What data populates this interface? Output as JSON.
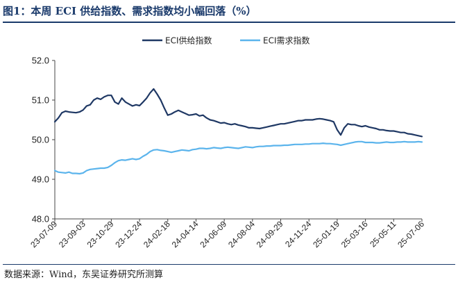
{
  "title": "图1：本周 ECI 供给指数、需求指数均小幅回落（%）",
  "source": "数据来源：Wind，东吴证券研究所测算",
  "colors": {
    "supply": "#1f3864",
    "demand": "#5bb4ec",
    "axis": "#444444",
    "heading": "#1a3a6b"
  },
  "chart_data": {
    "type": "line",
    "title": "本周 ECI 供给指数、需求指数均小幅回落（%）",
    "ylim": [
      48.0,
      52.0
    ],
    "yticks": [
      "48.0",
      "49.0",
      "50.0",
      "51.0",
      "52.0"
    ],
    "xlim": [
      "2023-07-09",
      "2025-07-06"
    ],
    "xticks": [
      "23-07-09",
      "23-09-03",
      "23-10-29",
      "23-12-24",
      "24-02-18",
      "24-04-14",
      "24-06-09",
      "24-08-04",
      "24-09-29",
      "24-11-24",
      "25-01-19",
      "25-03-16",
      "25-05-11",
      "25-07-06"
    ],
    "legend_position": "top-center",
    "grid": false,
    "series": [
      {
        "name": "ECI供给指数",
        "x": [
          "2023-07-09",
          "2023-07-16",
          "2023-07-23",
          "2023-07-30",
          "2023-08-06",
          "2023-08-13",
          "2023-08-20",
          "2023-08-27",
          "2023-09-03",
          "2023-09-10",
          "2023-09-17",
          "2023-09-24",
          "2023-10-01",
          "2023-10-08",
          "2023-10-15",
          "2023-10-22",
          "2023-10-29",
          "2023-11-05",
          "2023-11-12",
          "2023-11-19",
          "2023-11-26",
          "2023-12-03",
          "2023-12-10",
          "2023-12-17",
          "2023-12-24",
          "2023-12-31",
          "2024-01-07",
          "2024-01-14",
          "2024-01-21",
          "2024-01-28",
          "2024-02-04",
          "2024-02-11",
          "2024-02-18",
          "2024-02-25",
          "2024-03-03",
          "2024-03-10",
          "2024-03-17",
          "2024-03-24",
          "2024-03-31",
          "2024-04-07",
          "2024-04-14",
          "2024-04-21",
          "2024-04-28",
          "2024-05-05",
          "2024-05-12",
          "2024-05-19",
          "2024-05-26",
          "2024-06-02",
          "2024-06-09",
          "2024-06-16",
          "2024-06-23",
          "2024-06-30",
          "2024-07-07",
          "2024-07-14",
          "2024-07-21",
          "2024-07-28",
          "2024-08-04",
          "2024-08-11",
          "2024-08-18",
          "2024-08-25",
          "2024-09-01",
          "2024-09-08",
          "2024-09-15",
          "2024-09-22",
          "2024-09-29",
          "2024-10-06",
          "2024-10-13",
          "2024-10-20",
          "2024-10-27",
          "2024-11-03",
          "2024-11-10",
          "2024-11-17",
          "2024-11-24",
          "2024-12-01",
          "2024-12-08",
          "2024-12-15",
          "2024-12-22",
          "2024-12-29",
          "2025-01-05",
          "2025-01-12",
          "2025-01-19",
          "2025-01-26",
          "2025-02-02",
          "2025-02-09",
          "2025-02-16",
          "2025-02-23",
          "2025-03-02",
          "2025-03-09",
          "2025-03-16",
          "2025-03-23",
          "2025-03-30",
          "2025-04-06",
          "2025-04-13",
          "2025-04-20",
          "2025-04-27",
          "2025-05-04",
          "2025-05-11",
          "2025-05-18",
          "2025-05-25",
          "2025-06-01",
          "2025-06-08",
          "2025-06-15",
          "2025-06-22",
          "2025-06-29",
          "2025-07-06"
        ],
        "y": [
          50.45,
          50.55,
          50.68,
          50.72,
          50.7,
          50.69,
          50.68,
          50.7,
          50.75,
          50.85,
          50.88,
          51.0,
          51.05,
          51.02,
          51.08,
          51.12,
          51.12,
          50.95,
          50.9,
          51.05,
          50.95,
          50.9,
          50.85,
          50.88,
          50.86,
          50.95,
          51.05,
          51.18,
          51.28,
          51.15,
          51.0,
          50.8,
          50.62,
          50.65,
          50.7,
          50.74,
          50.7,
          50.66,
          50.62,
          50.63,
          50.65,
          50.6,
          50.62,
          50.55,
          50.5,
          50.48,
          50.45,
          50.42,
          50.43,
          50.4,
          50.38,
          50.4,
          50.37,
          50.35,
          50.33,
          50.3,
          50.3,
          50.29,
          50.28,
          50.3,
          50.32,
          50.34,
          50.36,
          50.38,
          50.4,
          50.4,
          50.42,
          50.44,
          50.46,
          50.48,
          50.48,
          50.5,
          50.5,
          50.5,
          50.52,
          50.53,
          50.52,
          50.5,
          50.48,
          50.45,
          50.25,
          50.12,
          50.3,
          50.4,
          50.38,
          50.38,
          50.35,
          50.33,
          50.35,
          50.32,
          50.3,
          50.28,
          50.25,
          50.25,
          50.23,
          50.22,
          50.22,
          50.2,
          50.18,
          50.18,
          50.15,
          50.14,
          50.12,
          50.1,
          50.08
        ]
      },
      {
        "name": "ECI需求指数",
        "x": [
          "2023-07-09",
          "2023-07-16",
          "2023-07-23",
          "2023-07-30",
          "2023-08-06",
          "2023-08-13",
          "2023-08-20",
          "2023-08-27",
          "2023-09-03",
          "2023-09-10",
          "2023-09-17",
          "2023-09-24",
          "2023-10-01",
          "2023-10-08",
          "2023-10-15",
          "2023-10-22",
          "2023-10-29",
          "2023-11-05",
          "2023-11-12",
          "2023-11-19",
          "2023-11-26",
          "2023-12-03",
          "2023-12-10",
          "2023-12-17",
          "2023-12-24",
          "2023-12-31",
          "2024-01-07",
          "2024-01-14",
          "2024-01-21",
          "2024-01-28",
          "2024-02-04",
          "2024-02-11",
          "2024-02-18",
          "2024-02-25",
          "2024-03-03",
          "2024-03-10",
          "2024-03-17",
          "2024-03-24",
          "2024-03-31",
          "2024-04-07",
          "2024-04-14",
          "2024-04-21",
          "2024-04-28",
          "2024-05-05",
          "2024-05-12",
          "2024-05-19",
          "2024-05-26",
          "2024-06-02",
          "2024-06-09",
          "2024-06-16",
          "2024-06-23",
          "2024-06-30",
          "2024-07-07",
          "2024-07-14",
          "2024-07-21",
          "2024-07-28",
          "2024-08-04",
          "2024-08-11",
          "2024-08-18",
          "2024-08-25",
          "2024-09-01",
          "2024-09-08",
          "2024-09-15",
          "2024-09-22",
          "2024-09-29",
          "2024-10-06",
          "2024-10-13",
          "2024-10-20",
          "2024-10-27",
          "2024-11-03",
          "2024-11-10",
          "2024-11-17",
          "2024-11-24",
          "2024-12-01",
          "2024-12-08",
          "2024-12-15",
          "2024-12-22",
          "2024-12-29",
          "2025-01-05",
          "2025-01-12",
          "2025-01-19",
          "2025-01-26",
          "2025-02-02",
          "2025-02-09",
          "2025-02-16",
          "2025-02-23",
          "2025-03-02",
          "2025-03-09",
          "2025-03-16",
          "2025-03-23",
          "2025-03-30",
          "2025-04-06",
          "2025-04-13",
          "2025-04-20",
          "2025-04-27",
          "2025-05-04",
          "2025-05-11",
          "2025-05-18",
          "2025-05-25",
          "2025-06-01",
          "2025-06-08",
          "2025-06-15",
          "2025-06-22",
          "2025-06-29",
          "2025-07-06"
        ],
        "y": [
          49.22,
          49.18,
          49.17,
          49.16,
          49.18,
          49.15,
          49.15,
          49.14,
          49.16,
          49.22,
          49.25,
          49.26,
          49.27,
          49.28,
          49.28,
          49.3,
          49.35,
          49.42,
          49.47,
          49.49,
          49.48,
          49.5,
          49.52,
          49.5,
          49.52,
          49.58,
          49.63,
          49.7,
          49.74,
          49.75,
          49.73,
          49.72,
          49.7,
          49.68,
          49.7,
          49.72,
          49.74,
          49.73,
          49.72,
          49.75,
          49.76,
          49.78,
          49.78,
          49.77,
          49.78,
          49.8,
          49.79,
          49.78,
          49.8,
          49.81,
          49.8,
          49.79,
          49.78,
          49.8,
          49.82,
          49.81,
          49.8,
          49.82,
          49.83,
          49.83,
          49.84,
          49.84,
          49.85,
          49.85,
          49.85,
          49.86,
          49.86,
          49.87,
          49.88,
          49.88,
          49.88,
          49.89,
          49.89,
          49.9,
          49.9,
          49.9,
          49.91,
          49.9,
          49.9,
          49.89,
          49.88,
          49.86,
          49.88,
          49.9,
          49.92,
          49.94,
          49.95,
          49.95,
          49.93,
          49.93,
          49.93,
          49.92,
          49.92,
          49.93,
          49.94,
          49.93,
          49.93,
          49.94,
          49.94,
          49.95,
          49.94,
          49.94,
          49.94,
          49.95,
          49.94
        ]
      }
    ]
  }
}
